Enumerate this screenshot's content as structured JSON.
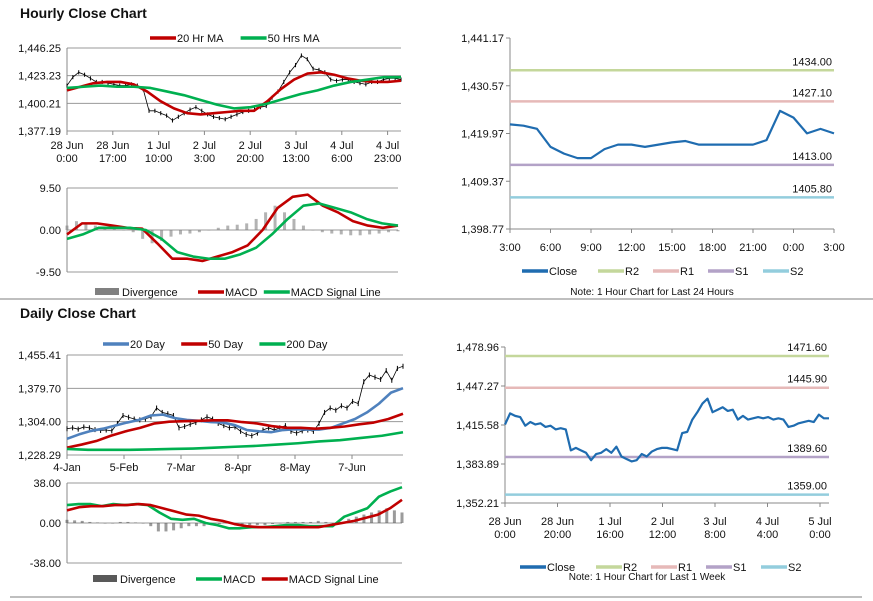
{
  "hourly": {
    "title": "Hourly Close Chart",
    "divider_color": "#888888"
  },
  "daily": {
    "title": "Daily Close Chart"
  },
  "chart_data": [
    {
      "id": "h_price",
      "type": "line",
      "panel": "Hourly Close Chart",
      "ylim": [
        1377.19,
        1446.25
      ],
      "yticks": [
        1377.19,
        1400.21,
        1423.23,
        1446.25
      ],
      "ytick_labels": [
        "1,377.19",
        "1,400.21",
        "1,423.23",
        "1,446.25"
      ],
      "xtick_labels": [
        [
          "28 Jun",
          "0:00"
        ],
        [
          "28 Jun",
          "17:00"
        ],
        [
          "1 Jul",
          "10:00"
        ],
        [
          "2 Jul",
          "3:00"
        ],
        [
          "2 Jul",
          "20:00"
        ],
        [
          "3 Jul",
          "13:00"
        ],
        [
          "4 Jul",
          "6:00"
        ],
        [
          "4 Jul",
          "23:00"
        ]
      ],
      "grid": true,
      "legend": "top",
      "series": [
        {
          "name": "",
          "kind": "ohlc",
          "color": "#000000",
          "values": [
            1415,
            1422,
            1426,
            1424,
            1421,
            1418,
            1418,
            1417,
            1416,
            1415,
            1415,
            1416,
            1415,
            1412,
            1394,
            1394,
            1392,
            1390,
            1386,
            1389,
            1392,
            1395,
            1397,
            1394,
            1391,
            1389,
            1388,
            1387,
            1389,
            1391,
            1393,
            1394,
            1395,
            1397,
            1398,
            1405,
            1410,
            1418,
            1426,
            1432,
            1440,
            1437,
            1429,
            1428,
            1426,
            1420,
            1419,
            1420,
            1420,
            1418,
            1417,
            1416,
            1418,
            1418,
            1420,
            1421,
            1421,
            1420
          ]
        },
        {
          "name": "20 Hr MA",
          "kind": "line",
          "color": "#C00000",
          "values": [
            1411,
            1414,
            1417,
            1418,
            1418,
            1416,
            1410,
            1402,
            1396,
            1392,
            1391,
            1392,
            1393,
            1394,
            1394,
            1402,
            1412,
            1420,
            1425,
            1426,
            1424,
            1421,
            1419,
            1418,
            1418,
            1419
          ]
        },
        {
          "name": "50 Hrs MA",
          "kind": "line",
          "color": "#00B050",
          "values": [
            1413,
            1414,
            1415,
            1414,
            1414,
            1413,
            1410,
            1407,
            1403,
            1399,
            1396,
            1397,
            1400,
            1404,
            1408,
            1411,
            1415,
            1418,
            1420,
            1422,
            1422
          ]
        }
      ]
    },
    {
      "id": "h_macd",
      "type": "line",
      "panel": "Hourly Close Chart",
      "ylim": [
        -9.5,
        9.5
      ],
      "yticks": [
        -9.5,
        0,
        9.5
      ],
      "ytick_labels": [
        "-9.50",
        "0.00",
        "9.50"
      ],
      "grid": true,
      "legend": "bottom",
      "series": [
        {
          "name": "Divergence",
          "kind": "hist",
          "color": "#808080",
          "values": [
            1,
            2,
            1.5,
            1,
            0.5,
            0.3,
            0,
            -0.5,
            -2,
            -3,
            -2.5,
            -1.5,
            -1,
            -0.8,
            -0.5,
            0,
            0.5,
            1,
            1.2,
            1.5,
            2.5,
            4,
            5.5,
            4,
            2.5,
            1,
            0,
            -0.5,
            -0.8,
            -1,
            -1.2,
            -1.2,
            -1,
            -0.8,
            -0.5,
            -0.3
          ]
        },
        {
          "name": "MACD",
          "kind": "line",
          "color": "#C00000",
          "values": [
            -1,
            1.5,
            1.5,
            1,
            0.5,
            0.3,
            -3,
            -6.5,
            -6.5,
            -7,
            -6,
            -5,
            -3.5,
            0,
            5,
            7.5,
            8,
            5.5,
            4,
            2,
            1,
            0.5,
            1
          ]
        },
        {
          "name": "MACD Signal Line",
          "kind": "line",
          "color": "#00B050",
          "values": [
            -2,
            -1,
            0.5,
            0.5,
            0.5,
            0,
            -2,
            -5,
            -6,
            -6.5,
            -6.5,
            -5.5,
            -4,
            -1,
            2.5,
            5.5,
            6,
            5,
            4,
            2.5,
            1.5,
            1
          ]
        }
      ]
    },
    {
      "id": "h_levels",
      "type": "line",
      "panel": "Hourly Close Chart",
      "ylim": [
        1398.77,
        1441.17
      ],
      "yticks": [
        1398.77,
        1409.37,
        1419.97,
        1430.57,
        1441.17
      ],
      "ytick_labels": [
        "1,398.77",
        "1,409.37",
        "1,419.97",
        "1,430.57",
        "1,441.17"
      ],
      "xtick_labels": [
        [
          "3:00"
        ],
        [
          "6:00"
        ],
        [
          "9:00"
        ],
        [
          "12:00"
        ],
        [
          "15:00"
        ],
        [
          "18:00"
        ],
        [
          "21:00"
        ],
        [
          "0:00"
        ],
        [
          "3:00"
        ]
      ],
      "grid": false,
      "legend": "bottom",
      "note": "Note: 1 Hour Chart for Last 24 Hours",
      "levels": [
        {
          "name": "R2",
          "value": 1434.0,
          "label": "1434.00",
          "color": "#C4D79B"
        },
        {
          "name": "R1",
          "value": 1427.1,
          "label": "1427.10",
          "color": "#E6B9B8"
        },
        {
          "name": "S1",
          "value": 1413.0,
          "label": "1413.00",
          "color": "#B3A2C7"
        },
        {
          "name": "S2",
          "value": 1405.8,
          "label": "1405.80",
          "color": "#93CDDD"
        }
      ],
      "series": [
        {
          "name": "Close",
          "kind": "line",
          "color": "#1F6CB0",
          "values": [
            1422,
            1421.7,
            1421,
            1417,
            1415.5,
            1414.5,
            1414.5,
            1416.5,
            1417.5,
            1417.5,
            1417,
            1417.5,
            1418,
            1418.3,
            1417.5,
            1417.5,
            1417.5,
            1417.5,
            1417.5,
            1418.5,
            1425,
            1423.5,
            1420,
            1421,
            1420
          ]
        }
      ]
    },
    {
      "id": "d_price",
      "type": "line",
      "panel": "Daily Close Chart",
      "ylim": [
        1228.29,
        1455.41
      ],
      "yticks": [
        1228.29,
        1304.0,
        1379.7,
        1455.41
      ],
      "ytick_labels": [
        "1,228.29",
        "1,304.00",
        "1,379.70",
        "1,455.41"
      ],
      "xtick_labels": [
        [
          "4-Jan"
        ],
        [
          "5-Feb"
        ],
        [
          "7-Mar"
        ],
        [
          "8-Apr"
        ],
        [
          "8-May"
        ],
        [
          "7-Jun"
        ]
      ],
      "grid": true,
      "legend": "top",
      "series": [
        {
          "name": "",
          "kind": "ohlc",
          "color": "#000000",
          "values": [
            1288,
            1290,
            1287,
            1292,
            1290,
            1286,
            1284,
            1285,
            1283,
            1300,
            1318,
            1314,
            1310,
            1308,
            1310,
            1315,
            1335,
            1325,
            1322,
            1318,
            1290,
            1293,
            1298,
            1302,
            1308,
            1315,
            1310,
            1300,
            1295,
            1290,
            1292,
            1282,
            1275,
            1272,
            1278,
            1285,
            1290,
            1285,
            1290,
            1295,
            1282,
            1278,
            1283,
            1285,
            1282,
            1300,
            1325,
            1335,
            1330,
            1340,
            1335,
            1350,
            1345,
            1395,
            1410,
            1405,
            1400,
            1420,
            1398,
            1425,
            1430
          ]
        },
        {
          "name": "20 Day",
          "kind": "line",
          "color": "#4F81BD",
          "values": [
            1265,
            1275,
            1283,
            1288,
            1295,
            1302,
            1308,
            1318,
            1320,
            1312,
            1308,
            1306,
            1303,
            1302,
            1296,
            1285,
            1282,
            1280,
            1285,
            1287,
            1286,
            1286,
            1290,
            1300,
            1310,
            1325,
            1345,
            1370,
            1380
          ]
        },
        {
          "name": "50 Day",
          "kind": "line",
          "color": "#C00000",
          "values": [
            1245,
            1252,
            1260,
            1272,
            1282,
            1290,
            1300,
            1304,
            1305,
            1306,
            1307,
            1307,
            1303,
            1300,
            1294,
            1290,
            1290,
            1288,
            1290,
            1293,
            1298,
            1302,
            1310,
            1322
          ]
        },
        {
          "name": "200 Day",
          "kind": "line",
          "color": "#00B050",
          "values": [
            1242,
            1240,
            1240,
            1240,
            1241,
            1242,
            1243,
            1245,
            1247,
            1249,
            1252,
            1255,
            1259,
            1262,
            1267,
            1272,
            1280
          ]
        }
      ]
    },
    {
      "id": "d_macd",
      "type": "line",
      "panel": "Daily Close Chart",
      "ylim": [
        -38,
        38
      ],
      "yticks": [
        -38,
        0,
        38
      ],
      "ytick_labels": [
        "-38.00",
        "0.00",
        "38.00"
      ],
      "grid": true,
      "legend": "bottom",
      "series": [
        {
          "name": "Divergence",
          "kind": "hist",
          "color": "#595959",
          "values": [
            3,
            2.5,
            2,
            1,
            0.5,
            0,
            0,
            1,
            1,
            0.5,
            0,
            -3,
            -8,
            -8,
            -7,
            -5,
            -3,
            -3,
            -3,
            -2,
            -1,
            0,
            -1,
            -2,
            -2,
            -2,
            -2,
            -1,
            0,
            1,
            1,
            1,
            1,
            2,
            1,
            0,
            1,
            4,
            6,
            8,
            10,
            12,
            14,
            12,
            10
          ]
        },
        {
          "name": "MACD",
          "kind": "line",
          "color": "#00B050",
          "values": [
            17,
            18,
            18,
            16,
            18,
            17,
            18,
            17,
            10,
            4,
            3,
            4,
            0,
            -2,
            -5,
            -5,
            -4,
            -4,
            -3,
            -2,
            -2,
            -3,
            -3,
            -3,
            6,
            10,
            14,
            25,
            30,
            34
          ]
        },
        {
          "name": "MACD Signal Line",
          "kind": "line",
          "color": "#C00000",
          "values": [
            12,
            15,
            16,
            16,
            17,
            17,
            18,
            17,
            14,
            11,
            8,
            7,
            4,
            2,
            -1,
            -3,
            -4,
            -4,
            -4,
            -4,
            -4,
            -4,
            -2,
            0,
            2,
            5,
            8,
            14,
            22
          ]
        }
      ]
    },
    {
      "id": "d_levels",
      "type": "line",
      "panel": "Daily Close Chart",
      "ylim": [
        1352.21,
        1478.96
      ],
      "yticks": [
        1352.21,
        1383.89,
        1415.58,
        1447.27,
        1478.96
      ],
      "ytick_labels": [
        "1,352.21",
        "1,383.89",
        "1,415.58",
        "1,447.27",
        "1,478.96"
      ],
      "xtick_labels": [
        [
          "28 Jun",
          "0:00"
        ],
        [
          "28 Jun",
          "20:00"
        ],
        [
          "1 Jul",
          "16:00"
        ],
        [
          "2 Jul",
          "12:00"
        ],
        [
          "3 Jul",
          "8:00"
        ],
        [
          "4 Jul",
          "4:00"
        ],
        [
          "5 Jul",
          "0:00"
        ]
      ],
      "grid": false,
      "legend": "bottom",
      "note": "Note: 1 Hour Chart for Last 1 Week",
      "levels": [
        {
          "name": "R2",
          "value": 1471.6,
          "label": "1471.60",
          "color": "#C4D79B"
        },
        {
          "name": "R1",
          "value": 1445.9,
          "label": "1445.90",
          "color": "#E6B9B8"
        },
        {
          "name": "S1",
          "value": 1389.6,
          "label": "1389.60",
          "color": "#B3A2C7"
        },
        {
          "name": "S2",
          "value": 1359.0,
          "label": "1359.00",
          "color": "#93CDDD"
        }
      ],
      "series": [
        {
          "name": "Close",
          "kind": "line",
          "color": "#1F6CB0",
          "values": [
            1416,
            1425,
            1423,
            1422,
            1415,
            1418,
            1416,
            1417,
            1414,
            1415,
            1412,
            1413,
            1412,
            1395,
            1397,
            1395,
            1393,
            1387,
            1392,
            1393,
            1396,
            1393,
            1398,
            1390,
            1388,
            1386,
            1387,
            1392,
            1390,
            1394,
            1396,
            1397,
            1397,
            1396,
            1395,
            1409,
            1410,
            1420,
            1426,
            1433,
            1437,
            1426,
            1428,
            1430,
            1427,
            1428,
            1420,
            1423,
            1420,
            1421,
            1422,
            1421,
            1422,
            1420,
            1421,
            1420,
            1414,
            1415,
            1417,
            1418,
            1419,
            1418,
            1424,
            1421,
            1421
          ]
        }
      ]
    }
  ]
}
